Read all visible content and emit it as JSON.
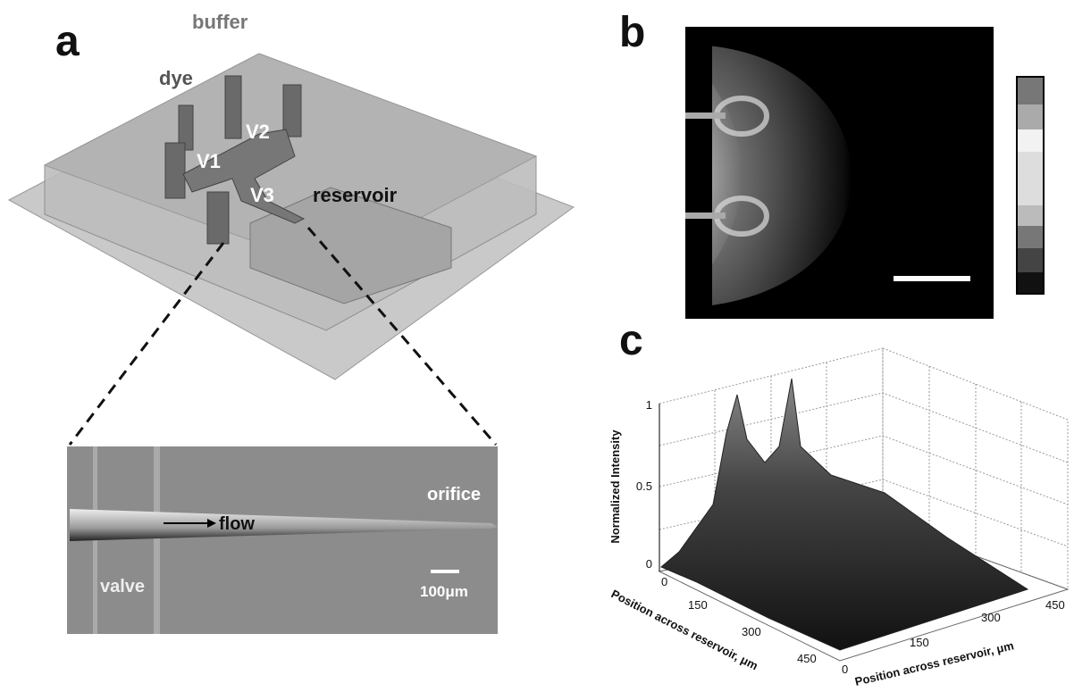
{
  "panels": {
    "a": {
      "label": "a",
      "device": {
        "buffer": "buffer",
        "dye": "dye",
        "valves": [
          "V1",
          "V2",
          "V3"
        ],
        "reservoir": "reservoir"
      },
      "inset": {
        "flow": "flow",
        "orifice": "orifice",
        "valve": "valve",
        "scale_bar": "100μm"
      }
    },
    "b": {
      "label": "b"
    },
    "c": {
      "label": "c",
      "z_axis_label": "Normalized Intensity",
      "z_ticks": [
        "0",
        "0.5",
        "1"
      ],
      "x_axis_label": "Position across reservoir, μm",
      "x_ticks": [
        "0",
        "150",
        "300",
        "450"
      ],
      "y_axis_label": "Position across reservoir, μm",
      "y_ticks": [
        "0",
        "150",
        "300",
        "450"
      ]
    }
  }
}
